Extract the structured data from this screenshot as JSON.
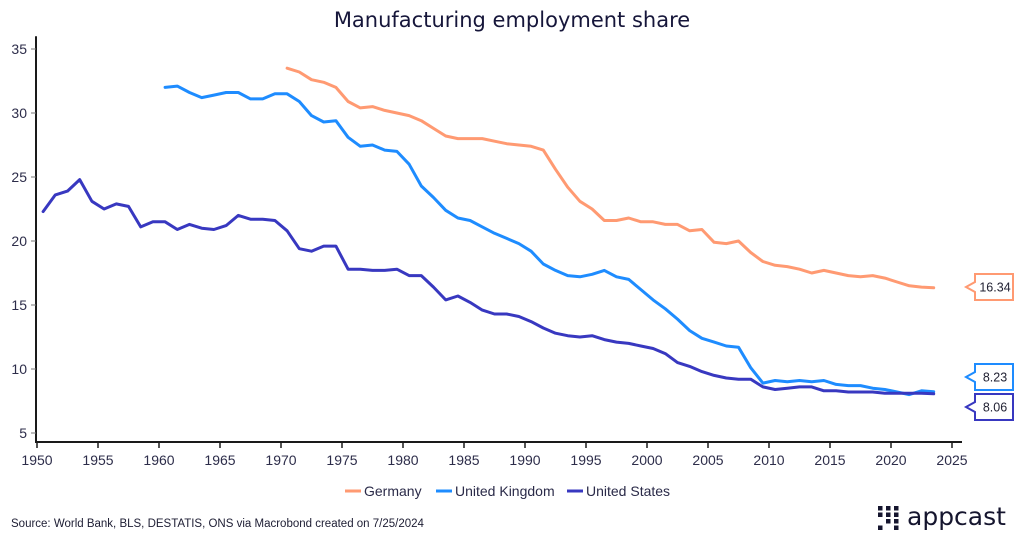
{
  "chart_data": {
    "type": "line",
    "title": "Manufacturing employment share",
    "xlabel": "",
    "ylabel": "",
    "xlim": [
      1950,
      2025
    ],
    "ylim": [
      4.3,
      36
    ],
    "x_ticks": [
      1950,
      1955,
      1960,
      1965,
      1970,
      1975,
      1980,
      1985,
      1990,
      1995,
      2000,
      2005,
      2010,
      2015,
      2020,
      2025
    ],
    "y_ticks": [
      5,
      10,
      15,
      20,
      25,
      30,
      35
    ],
    "grid": false,
    "legend_position": "bottom-center",
    "series": [
      {
        "name": "Germany",
        "color": "#ff9a72",
        "start_year": 1970,
        "values": [
          33.5,
          33.2,
          32.6,
          32.4,
          32.0,
          30.9,
          30.4,
          30.5,
          30.2,
          30.0,
          29.8,
          29.4,
          28.8,
          28.2,
          28.0,
          28.0,
          28.0,
          27.8,
          27.6,
          27.5,
          27.4,
          27.1,
          25.6,
          24.2,
          23.1,
          22.5,
          21.6,
          21.6,
          21.8,
          21.5,
          21.5,
          21.3,
          21.3,
          20.8,
          20.9,
          19.9,
          19.8,
          20.0,
          19.1,
          18.4,
          18.1,
          18.0,
          17.8,
          17.5,
          17.7,
          17.5,
          17.3,
          17.2,
          17.3,
          17.1,
          16.8,
          16.5,
          16.4,
          16.34
        ],
        "end_label": "16.34"
      },
      {
        "name": "United Kingdom",
        "color": "#1e8cff",
        "start_year": 1960,
        "values": [
          32.0,
          32.1,
          31.6,
          31.2,
          31.4,
          31.6,
          31.6,
          31.1,
          31.1,
          31.5,
          31.5,
          30.9,
          29.8,
          29.3,
          29.4,
          28.1,
          27.4,
          27.5,
          27.1,
          27.0,
          26.0,
          24.3,
          23.4,
          22.4,
          21.8,
          21.6,
          21.1,
          20.6,
          20.2,
          19.8,
          19.2,
          18.2,
          17.7,
          17.3,
          17.2,
          17.4,
          17.7,
          17.2,
          17.0,
          16.2,
          15.4,
          14.7,
          13.9,
          13.0,
          12.4,
          12.1,
          11.8,
          11.7,
          10.1,
          8.9,
          9.1,
          9.0,
          9.1,
          9.0,
          9.1,
          8.8,
          8.7,
          8.7,
          8.5,
          8.4,
          8.2,
          8.0,
          8.3,
          8.23
        ],
        "end_label": "8.23"
      },
      {
        "name": "United States",
        "color": "#3838c0",
        "start_year": 1950,
        "values": [
          22.3,
          23.6,
          23.9,
          24.8,
          23.1,
          22.5,
          22.9,
          22.7,
          21.1,
          21.5,
          21.5,
          20.9,
          21.3,
          21.0,
          20.9,
          21.2,
          22.0,
          21.7,
          21.7,
          21.6,
          20.8,
          19.4,
          19.2,
          19.6,
          19.6,
          17.8,
          17.8,
          17.7,
          17.7,
          17.8,
          17.3,
          17.3,
          16.4,
          15.4,
          15.7,
          15.2,
          14.6,
          14.3,
          14.3,
          14.1,
          13.7,
          13.2,
          12.8,
          12.6,
          12.5,
          12.6,
          12.3,
          12.1,
          12.0,
          11.8,
          11.6,
          11.2,
          10.5,
          10.2,
          9.8,
          9.5,
          9.3,
          9.2,
          9.2,
          8.6,
          8.4,
          8.5,
          8.6,
          8.6,
          8.3,
          8.3,
          8.2,
          8.2,
          8.2,
          8.1,
          8.1,
          8.1,
          8.1,
          8.06
        ],
        "end_label": "8.06"
      }
    ]
  },
  "source_text": "Source: World Bank, BLS, DESTATIS, ONS via Macrobond created on 7/25/2024",
  "logo": {
    "name": "appcast-logo",
    "text": "appcast"
  },
  "axis_color": "#1a1a1a"
}
